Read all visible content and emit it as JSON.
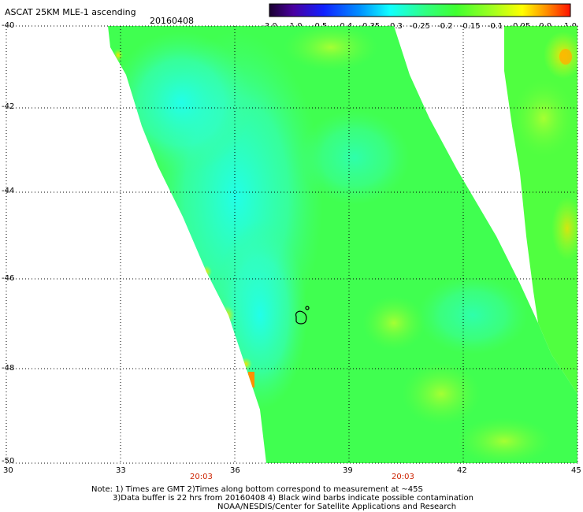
{
  "header": {
    "title": "ASCAT 25KM MLE-1 ascending",
    "date": "20160408"
  },
  "colorbar": {
    "tick_labels": [
      "-3.0",
      "-1.0",
      "-0.5",
      "-0.4",
      "-0.35",
      "-0.3",
      "-0.25",
      "-0.2",
      "-0.15",
      "-0.1",
      "-0.05",
      "0.0",
      "1.0"
    ],
    "colors": [
      "#2a0040",
      "#5a00b0",
      "#2030ff",
      "#0090ff",
      "#00d0ff",
      "#20ffe0",
      "#30ff90",
      "#40ff40",
      "#90ff30",
      "#d0ff20",
      "#ffff00",
      "#ff9000",
      "#ff2000"
    ]
  },
  "axes": {
    "latitude_labels": [
      "-40",
      "-42",
      "-44",
      "-46",
      "-48",
      "-50"
    ],
    "longitude_labels": [
      "30",
      "33",
      "36",
      "39",
      "42",
      "45"
    ],
    "time_labels": [
      "20:03",
      "20:03"
    ],
    "lat_range": [
      -50,
      -40
    ],
    "lon_range": [
      30,
      45
    ]
  },
  "map": {
    "data_colors": {
      "cyan_core": "#20ffe8",
      "aqua": "#40ffb0",
      "green": "#40ff40",
      "yellow_green": "#a0ff30",
      "yellow": "#ffff00",
      "orange": "#ff9000"
    },
    "contamination_marker": "black-wind-barb-contour"
  },
  "notes": {
    "line1": "Note: 1) Times are GMT 2)Times along bottom correspond to measurement at ~45S",
    "line2": "3)Data buffer is 22 hrs from 20160408 4) Black wind barbs indicate possible contamination",
    "line3": "NOAA/NESDIS/Center for Satellite Applications and Research"
  }
}
